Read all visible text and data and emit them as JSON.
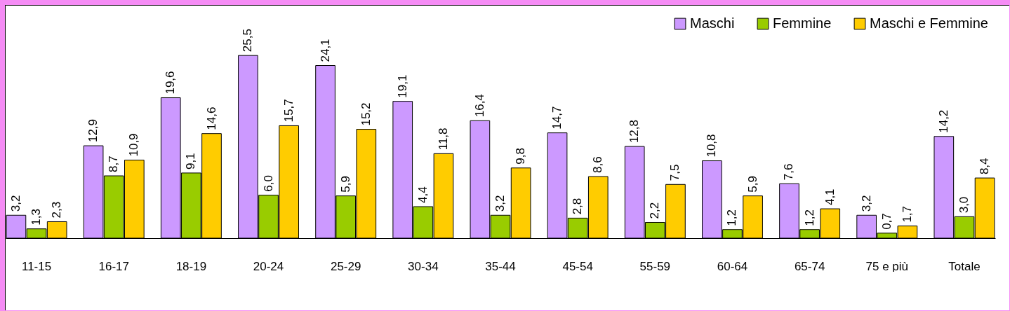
{
  "chart_data": {
    "type": "bar",
    "categories": [
      "11-15",
      "16-17",
      "18-19",
      "20-24",
      "25-29",
      "30-34",
      "35-44",
      "45-54",
      "55-59",
      "60-64",
      "65-74",
      "75 e più",
      "Totale"
    ],
    "series": [
      {
        "name": "Maschi",
        "color": "#cc99ff",
        "values": [
          3.2,
          12.9,
          19.6,
          25.5,
          24.1,
          19.1,
          16.4,
          14.7,
          12.8,
          10.8,
          7.6,
          3.2,
          14.2
        ],
        "value_labels": [
          "3,2",
          "12,9",
          "19,6",
          "25,5",
          "24,1",
          "19,1",
          "16,4",
          "14,7",
          "12,8",
          "10,8",
          "7,6",
          "3,2",
          "14,2"
        ]
      },
      {
        "name": "Femmine",
        "color": "#99cc00",
        "values": [
          1.3,
          8.7,
          9.1,
          6.0,
          5.9,
          4.4,
          3.2,
          2.8,
          2.2,
          1.2,
          1.2,
          0.7,
          3.0
        ],
        "value_labels": [
          "1,3",
          "8,7",
          "9,1",
          "6,0",
          "5,9",
          "4,4",
          "3,2",
          "2,8",
          "2,2",
          "1,2",
          "1,2",
          "0,7",
          "3,0"
        ]
      },
      {
        "name": "Maschi e Femmine",
        "color": "#ffcc00",
        "values": [
          2.3,
          10.9,
          14.6,
          15.7,
          15.2,
          11.8,
          9.8,
          8.6,
          7.5,
          5.9,
          4.1,
          1.7,
          8.4
        ],
        "value_labels": [
          "2,3",
          "10,9",
          "14,6",
          "15,7",
          "15,2",
          "11,8",
          "9,8",
          "8,6",
          "7,5",
          "5,9",
          "4,1",
          "1,7",
          "8,4"
        ]
      }
    ],
    "legend": "top right"
  }
}
